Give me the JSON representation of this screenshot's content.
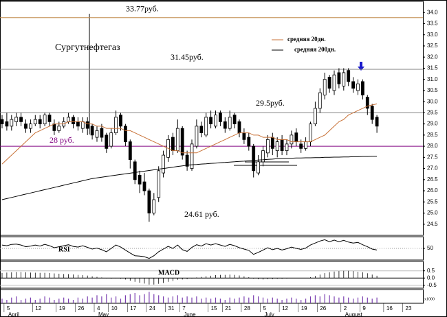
{
  "chart_data": {
    "type": "candlestick",
    "title": "Сургутнефтегаз",
    "categories": [
      null,
      "5",
      null,
      null,
      null,
      null,
      null,
      "12",
      null,
      null,
      null,
      null,
      "19",
      null,
      null,
      null,
      "26",
      null,
      null,
      null,
      "4",
      null,
      null,
      "10",
      null,
      null,
      null,
      "17",
      null,
      null,
      null,
      "24",
      null,
      null,
      null,
      "31",
      null,
      null,
      "7",
      null,
      null,
      null,
      null,
      null,
      "15",
      null,
      null,
      "21",
      null,
      null,
      null,
      "28",
      null,
      null,
      null,
      "5",
      null,
      null,
      null,
      "12",
      null,
      null,
      null,
      "19",
      null,
      null,
      null,
      "26",
      null,
      null,
      null,
      null,
      "2",
      null,
      null,
      null,
      "9",
      null,
      null,
      null,
      null,
      "16",
      null,
      null,
      null,
      "23",
      null
    ],
    "months": [
      null,
      "April",
      null,
      null,
      null,
      null,
      null,
      null,
      null,
      null,
      null,
      null,
      null,
      null,
      null,
      null,
      null,
      null,
      null,
      null,
      "May",
      null,
      null,
      null,
      null,
      null,
      null,
      null,
      null,
      null,
      null,
      null,
      null,
      null,
      null,
      null,
      null,
      null,
      "June",
      null,
      null,
      null,
      null,
      null,
      null,
      null,
      null,
      null,
      null,
      null,
      null,
      null,
      null,
      null,
      null,
      "July",
      null,
      null,
      null,
      null,
      null,
      null,
      null,
      null,
      null,
      null,
      null,
      null,
      null,
      null,
      null,
      null,
      "August",
      null,
      null,
      null,
      null,
      null,
      null,
      null,
      null,
      null,
      null,
      null,
      null,
      null,
      null
    ],
    "candles": {
      "open": [
        29.2,
        29.1,
        28.9,
        29.1,
        29.3,
        29.0,
        28.8,
        29.0,
        29.2,
        29.0,
        29.4,
        29.0,
        28.7,
        28.9,
        29.1,
        29.3,
        29.1,
        28.8,
        29.1,
        28.9,
        28.4,
        28.8,
        28.5,
        28.0,
        28.6,
        29.4,
        28.9,
        28.2,
        27.3,
        26.7,
        26.4,
        26.0,
        25.0,
        25.7,
        26.8,
        27.5,
        28.4,
        27.8,
        28.8,
        27.6,
        27.0,
        28.0,
        28.9,
        28.5,
        29.3,
        28.9,
        29.5,
        29.1,
        28.8,
        29.4,
        29.1,
        28.6,
        28.4,
        28.0,
        26.8,
        27.3,
        27.7,
        28.4,
        27.8,
        28.3,
        27.8,
        28.1,
        28.6,
        28.1,
        27.9,
        28.2,
        29.0,
        29.7,
        30.3,
        31.1,
        30.5,
        31.3,
        30.7,
        31.4,
        30.9,
        30.5,
        30.9,
        30.2,
        29.8,
        29.3,
        null,
        null,
        null,
        null,
        null,
        null,
        null
      ],
      "high": [
        29.4,
        29.5,
        29.4,
        29.5,
        29.5,
        29.2,
        29.2,
        29.4,
        29.4,
        29.5,
        29.5,
        29.2,
        29.1,
        29.3,
        29.5,
        29.4,
        29.3,
        29.3,
        29.3,
        29.0,
        28.9,
        29.0,
        28.6,
        28.8,
        29.6,
        29.5,
        29.0,
        28.3,
        27.4,
        26.9,
        26.8,
        26.1,
        25.9,
        27.1,
        27.8,
        28.5,
        28.6,
        29.2,
        28.9,
        27.8,
        28.3,
        29.2,
        29.1,
        29.5,
        29.6,
        29.6,
        29.6,
        29.3,
        29.6,
        29.5,
        29.2,
        28.8,
        28.6,
        28.1,
        27.6,
        28.0,
        28.5,
        28.6,
        28.4,
        28.5,
        28.3,
        28.7,
        28.8,
        28.3,
        28.4,
        29.1,
        30.0,
        30.6,
        31.3,
        31.2,
        31.4,
        31.5,
        31.5,
        31.5,
        31.1,
        31.0,
        31.0,
        30.3,
        29.9,
        29.4,
        null,
        null,
        null,
        null,
        null,
        null,
        null
      ],
      "low": [
        28.8,
        28.7,
        28.7,
        28.9,
        28.9,
        28.6,
        28.6,
        28.9,
        28.8,
        28.9,
        28.9,
        28.5,
        28.6,
        28.8,
        29.0,
        28.8,
        28.7,
        28.6,
        28.5,
        28.3,
        28.2,
        28.2,
        27.7,
        27.9,
        28.5,
        28.7,
        28.0,
        27.0,
        26.3,
        25.9,
        25.8,
        24.61,
        24.9,
        25.5,
        26.6,
        27.3,
        27.6,
        27.7,
        27.4,
        26.9,
        26.9,
        27.9,
        28.4,
        28.4,
        28.8,
        28.8,
        28.9,
        28.6,
        28.7,
        28.8,
        28.4,
        28.1,
        27.8,
        26.6,
        26.7,
        27.1,
        27.5,
        27.6,
        27.5,
        27.6,
        27.6,
        27.9,
        28.0,
        27.7,
        27.8,
        28.0,
        28.9,
        29.5,
        30.1,
        30.4,
        30.3,
        30.6,
        30.5,
        30.7,
        30.4,
        30.3,
        30.1,
        29.4,
        29.0,
        28.6,
        null,
        null,
        null,
        null,
        null,
        null,
        null
      ],
      "close": [
        29.0,
        28.9,
        29.2,
        29.3,
        29.1,
        28.8,
        29.0,
        29.2,
        29.0,
        29.4,
        29.1,
        28.7,
        28.9,
        29.1,
        29.3,
        29.0,
        28.9,
        29.1,
        28.8,
        28.5,
        28.7,
        28.4,
        27.9,
        28.6,
        29.3,
        28.9,
        28.2,
        27.4,
        26.5,
        26.3,
        26.0,
        25.0,
        25.6,
        26.9,
        27.6,
        28.3,
        27.8,
        28.8,
        27.6,
        27.1,
        28.1,
        28.9,
        28.6,
        29.3,
        29.0,
        29.4,
        29.1,
        28.8,
        29.3,
        29.0,
        28.6,
        28.3,
        28.0,
        26.9,
        27.3,
        27.8,
        28.3,
        27.9,
        28.2,
        27.8,
        28.1,
        28.5,
        28.2,
        27.9,
        28.2,
        29.0,
        29.7,
        30.4,
        31.0,
        30.6,
        31.2,
        30.8,
        31.3,
        30.9,
        30.6,
        30.8,
        30.3,
        29.7,
        29.2,
        28.9,
        null,
        null,
        null,
        null,
        null,
        null,
        null
      ]
    },
    "series": [
      {
        "name": "средняя 20дн.",
        "color": "#c87137",
        "values": [
          27.2,
          27.4,
          27.6,
          27.8,
          28.0,
          28.2,
          28.4,
          28.6,
          28.7,
          28.8,
          28.9,
          29.0,
          29.0,
          29.0,
          29.1,
          29.1,
          29.1,
          29.1,
          29.0,
          29.0,
          28.9,
          28.9,
          28.8,
          28.8,
          28.8,
          28.8,
          28.7,
          28.7,
          28.6,
          28.5,
          28.4,
          28.3,
          28.2,
          28.1,
          28.0,
          27.9,
          27.8,
          27.8,
          27.7,
          27.7,
          27.7,
          27.7,
          27.8,
          27.9,
          28.0,
          28.1,
          28.2,
          28.3,
          28.4,
          28.5,
          28.6,
          28.6,
          28.6,
          28.5,
          28.5,
          28.4,
          28.4,
          28.4,
          28.3,
          28.3,
          28.3,
          28.2,
          28.2,
          28.2,
          28.2,
          28.2,
          28.3,
          28.4,
          28.5,
          28.7,
          28.9,
          29.1,
          29.2,
          29.4,
          29.5,
          29.6,
          29.7,
          29.8,
          29.85,
          29.9,
          null,
          null,
          null,
          null,
          null,
          null,
          null
        ]
      },
      {
        "name": "средняя 200дн.",
        "color": "#000000",
        "values": [
          25.6,
          25.65,
          25.7,
          25.75,
          25.8,
          25.85,
          25.9,
          25.95,
          26,
          26.05,
          26.1,
          26.15,
          26.2,
          26.25,
          26.3,
          26.35,
          26.4,
          26.45,
          26.5,
          26.55,
          26.58,
          26.61,
          26.64,
          26.67,
          26.7,
          26.73,
          26.76,
          26.79,
          26.82,
          26.85,
          26.88,
          26.91,
          26.94,
          26.97,
          27,
          27.03,
          27.06,
          27.09,
          27.12,
          27.15,
          27.17,
          27.18,
          27.2,
          27.21,
          27.23,
          27.24,
          27.26,
          27.27,
          27.29,
          27.3,
          27.32,
          27.33,
          27.35,
          27.36,
          27.38,
          27.39,
          27.41,
          27.42,
          27.44,
          27.45,
          27.46,
          27.46,
          27.47,
          27.47,
          27.48,
          27.48,
          27.49,
          27.49,
          27.5,
          27.5,
          27.51,
          27.51,
          27.52,
          27.52,
          27.53,
          27.53,
          27.54,
          27.54,
          27.55,
          27.55,
          null,
          null,
          null,
          null,
          null,
          null,
          null
        ]
      }
    ],
    "ylim": [
      24.0,
      34.5
    ],
    "yticks": [
      24.5,
      {
        "value": 25,
        "label": "25.0"
      },
      25.5,
      {
        "value": 26,
        "label": "26.0"
      },
      26.5,
      {
        "value": 27,
        "label": "27.0"
      },
      27.5,
      {
        "value": 28,
        "label": "28.0"
      },
      28.5,
      {
        "value": 29,
        "label": "29.0"
      },
      29.5,
      {
        "value": 30,
        "label": "30.0"
      },
      30.5,
      {
        "value": 31,
        "label": "31.0"
      },
      31.5,
      {
        "value": 32,
        "label": "32.0"
      },
      32.5,
      {
        "value": 33,
        "label": "33.0"
      },
      33.5,
      {
        "value": 34,
        "label": "34.0"
      }
    ],
    "levels": [
      {
        "value": 33.77,
        "label": "33.77руб.",
        "color": "#c08a4a"
      },
      {
        "value": 31.45,
        "label": "31.45руб.",
        "color": "#808080"
      },
      {
        "value": 29.5,
        "label": "29.5руб.",
        "color": "#808080"
      },
      {
        "value": 28,
        "label": "28  руб.",
        "color": "#800080"
      }
    ],
    "annotations": [
      {
        "value": 24.61,
        "label": "24.61  руб."
      }
    ],
    "rsi": {
      "label": "RSI",
      "ylim": [
        15,
        85
      ],
      "yticks": [
        50
      ],
      "values": [
        60,
        58,
        62,
        63,
        60,
        55,
        57,
        60,
        57,
        62,
        58,
        52,
        55,
        58,
        61,
        56,
        54,
        58,
        53,
        48,
        51,
        46,
        40,
        50,
        60,
        54,
        45,
        36,
        28,
        27,
        25,
        20,
        28,
        40,
        48,
        56,
        50,
        60,
        46,
        41,
        53,
        61,
        57,
        64,
        60,
        64,
        60,
        56,
        62,
        58,
        52,
        48,
        44,
        32,
        38,
        45,
        52,
        46,
        50,
        45,
        49,
        54,
        50,
        47,
        51,
        60,
        66,
        72,
        76,
        70,
        75,
        70,
        74,
        69,
        66,
        68,
        61,
        55,
        48,
        45,
        null,
        null,
        null,
        null,
        null,
        null,
        null
      ]
    },
    "macd": {
      "label": "MACD",
      "ylim": [
        -0.7,
        1.15
      ],
      "yticks": [
        0.5,
        {
          "value": 0,
          "label": "0.0"
        },
        -0.5
      ],
      "values": [
        0.35,
        0.38,
        0.4,
        0.42,
        0.42,
        0.4,
        0.38,
        0.37,
        0.36,
        0.36,
        0.35,
        0.32,
        0.3,
        0.28,
        0.27,
        0.25,
        0.22,
        0.2,
        0.17,
        0.12,
        0.08,
        0.04,
        -0.02,
        -0.04,
        -0.02,
        -0.05,
        -0.1,
        -0.18,
        -0.26,
        -0.32,
        -0.38,
        -0.45,
        -0.45,
        -0.4,
        -0.34,
        -0.26,
        -0.2,
        -0.12,
        -0.1,
        -0.08,
        -0.03,
        0.04,
        0.08,
        0.13,
        0.16,
        0.2,
        0.22,
        0.22,
        0.24,
        0.22,
        0.18,
        0.12,
        0.06,
        -0.04,
        -0.08,
        -0.1,
        -0.08,
        -0.07,
        -0.05,
        -0.05,
        -0.03,
        0,
        0.01,
        0,
        0.01,
        0.06,
        0.14,
        0.24,
        0.34,
        0.4,
        0.45,
        0.48,
        0.5,
        0.5,
        0.48,
        0.44,
        0.4,
        0.33,
        0.24,
        0.16,
        null,
        null,
        null,
        null,
        null,
        null,
        null
      ]
    },
    "volume": {
      "unit": "x1000",
      "ylim": [
        0,
        12
      ],
      "color": "#7a3fb0",
      "values": [
        4,
        3,
        5,
        6,
        3,
        4,
        5,
        3,
        4,
        6,
        5,
        3,
        4,
        5,
        4,
        3,
        5,
        4,
        6,
        5,
        7,
        6,
        8,
        5,
        6,
        4,
        7,
        8,
        9,
        7,
        8,
        10,
        8,
        7,
        6,
        5,
        6,
        7,
        5,
        6,
        5,
        6,
        4,
        5,
        4,
        5,
        4,
        3,
        5,
        4,
        5,
        6,
        5,
        7,
        6,
        5,
        4,
        5,
        4,
        3,
        4,
        5,
        4,
        3,
        4,
        6,
        7,
        6,
        8,
        7,
        6,
        5,
        6,
        5,
        4,
        5,
        6,
        5,
        4,
        5,
        null,
        null,
        null,
        null,
        null,
        null,
        null
      ]
    }
  }
}
